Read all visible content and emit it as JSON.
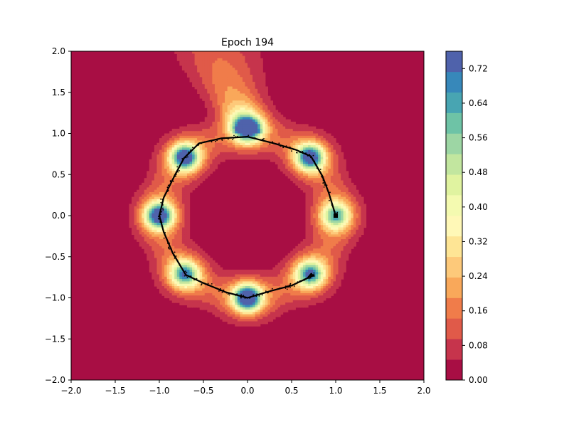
{
  "chart_data": {
    "type": "heatmap",
    "subtype": "filled-contour with sample scatter",
    "title": "Epoch 194",
    "xlabel": "",
    "ylabel": "",
    "xlim": [
      -2.0,
      2.0
    ],
    "ylim": [
      -2.0,
      2.0
    ],
    "x_ticks": [
      "−2.0",
      "−1.5",
      "−1.0",
      "−0.5",
      "0.0",
      "0.5",
      "1.0",
      "1.5",
      "2.0"
    ],
    "y_ticks": [
      "−2.0",
      "−1.5",
      "−1.0",
      "−0.5",
      "0.0",
      "0.5",
      "1.0",
      "1.5",
      "2.0"
    ],
    "x_tick_values": [
      -2.0,
      -1.5,
      -1.0,
      -0.5,
      0.0,
      0.5,
      1.0,
      1.5,
      2.0
    ],
    "y_tick_values": [
      -2.0,
      -1.5,
      -1.0,
      -0.5,
      0.0,
      0.5,
      1.0,
      1.5,
      2.0
    ],
    "colorbar": {
      "range": [
        0.0,
        0.76
      ],
      "ticks": [
        "0.00",
        "0.08",
        "0.16",
        "0.24",
        "0.32",
        "0.40",
        "0.48",
        "0.56",
        "0.64",
        "0.72"
      ],
      "tick_values": [
        0.0,
        0.08,
        0.16,
        0.24,
        0.32,
        0.4,
        0.48,
        0.56,
        0.64,
        0.72
      ],
      "colormap": "Spectral",
      "level_colors": [
        "#a80e44",
        "#c6344c",
        "#e05a49",
        "#f07c4a",
        "#f9a85a",
        "#fdc97a",
        "#fee595",
        "#fff8b7",
        "#f4fab0",
        "#e0f3a0",
        "#c2e69f",
        "#9dd6a4",
        "#6ec3a6",
        "#48a5b2",
        "#3788ba",
        "#4f62ab"
      ]
    },
    "density_peaks": [
      {
        "x": 0.0,
        "y": 1.05,
        "peak": 0.66
      },
      {
        "x": 0.71,
        "y": 0.71,
        "peak": 0.58
      },
      {
        "x": 1.0,
        "y": 0.0,
        "peak": 0.36
      },
      {
        "x": 0.71,
        "y": -0.71,
        "peak": 0.46
      },
      {
        "x": 0.0,
        "y": -1.0,
        "peak": 0.7
      },
      {
        "x": -0.71,
        "y": -0.71,
        "peak": 0.44
      },
      {
        "x": -1.0,
        "y": 0.0,
        "peak": 0.62
      },
      {
        "x": -0.71,
        "y": 0.71,
        "peak": 0.6
      }
    ],
    "upper_plume": {
      "x_range": [
        -0.9,
        0.15
      ],
      "y_range": [
        1.1,
        2.0
      ],
      "peak": 0.26
    },
    "samples_path": [
      [
        1.0,
        0.0
      ],
      [
        0.92,
        0.28
      ],
      [
        0.85,
        0.48
      ],
      [
        0.72,
        0.72
      ],
      [
        0.55,
        0.8
      ],
      [
        0.3,
        0.88
      ],
      [
        0.0,
        0.96
      ],
      [
        -0.3,
        0.94
      ],
      [
        -0.55,
        0.88
      ],
      [
        -0.72,
        0.7
      ],
      [
        -0.82,
        0.5
      ],
      [
        -0.95,
        0.22
      ],
      [
        -1.0,
        0.0
      ],
      [
        -0.95,
        -0.2
      ],
      [
        -0.85,
        -0.45
      ],
      [
        -0.7,
        -0.72
      ],
      [
        -0.5,
        -0.82
      ],
      [
        -0.25,
        -0.93
      ],
      [
        0.0,
        -1.0
      ],
      [
        0.25,
        -0.92
      ],
      [
        0.5,
        -0.85
      ],
      [
        0.7,
        -0.75
      ],
      [
        0.75,
        -0.72
      ]
    ],
    "samples_spur": [
      [
        0.68,
        -0.76
      ],
      [
        0.72,
        -0.71
      ],
      [
        0.76,
        -0.74
      ]
    ],
    "marker_color": "#000000",
    "colors": {
      "line": "#000000",
      "background": "#ffffff"
    }
  }
}
